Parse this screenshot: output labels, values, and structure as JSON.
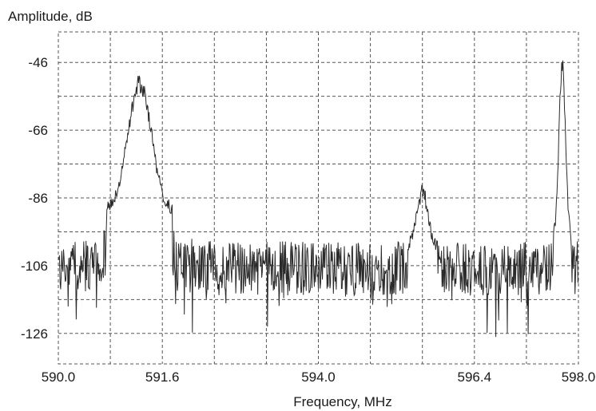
{
  "chart_data": {
    "type": "line",
    "title": "",
    "xlabel": "Frequency, MHz",
    "ylabel": "Amplitude, dB",
    "xlim": [
      590.0,
      598.0
    ],
    "ylim": [
      -135,
      -37
    ],
    "x_ticks": [
      590.0,
      591.6,
      594.0,
      596.4,
      598.0
    ],
    "x_tick_labels": [
      "590.0",
      "591.6",
      "594.0",
      "596.4",
      "598.0"
    ],
    "y_ticks": [
      -46,
      -66,
      -86,
      -106,
      -126
    ],
    "y_tick_labels": [
      "-46",
      "-66",
      "-86",
      "-106",
      "-126"
    ],
    "grid": true,
    "grid_style": "dashed",
    "line_color": "#2a2a2a",
    "noise_floor_db": -106,
    "noise_span_db": 16,
    "series": [
      {
        "peaks": [
          {
            "x": 591.25,
            "y": -52,
            "width_mhz": 0.18,
            "base_y": -90
          },
          {
            "x": 595.6,
            "y": -84,
            "width_mhz": 0.08,
            "base_y": -100
          },
          {
            "x": 597.75,
            "y": -47,
            "width_mhz": 0.05,
            "base_y": -98
          }
        ],
        "points": 900
      }
    ]
  }
}
